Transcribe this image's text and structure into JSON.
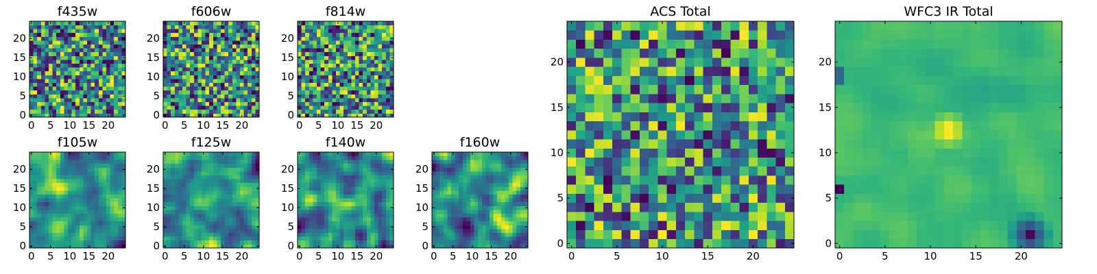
{
  "figure": {
    "panels": [
      {
        "title": "f435w",
        "xticks": [
          "0",
          "5",
          "10",
          "15",
          "20"
        ],
        "yticks": [
          "0",
          "5",
          "10",
          "15",
          "20"
        ]
      },
      {
        "title": "f606w",
        "xticks": [
          "0",
          "5",
          "10",
          "15",
          "20"
        ],
        "yticks": [
          "0",
          "5",
          "10",
          "15",
          "20"
        ]
      },
      {
        "title": "f814w",
        "xticks": [
          "0",
          "5",
          "10",
          "15",
          "20"
        ],
        "yticks": [
          "0",
          "5",
          "10",
          "15",
          "20"
        ]
      },
      {
        "title": "f105w",
        "xticks": [
          "0",
          "5",
          "10",
          "15",
          "20"
        ],
        "yticks": [
          "0",
          "5",
          "10",
          "15",
          "20"
        ]
      },
      {
        "title": "f125w",
        "xticks": [
          "0",
          "5",
          "10",
          "15",
          "20"
        ],
        "yticks": [
          "0",
          "5",
          "10",
          "15",
          "20"
        ]
      },
      {
        "title": "f140w",
        "xticks": [
          "0",
          "5",
          "10",
          "15",
          "20"
        ],
        "yticks": [
          "0",
          "5",
          "10",
          "15",
          "20"
        ]
      },
      {
        "title": "f160w",
        "xticks": [
          "0",
          "5",
          "10",
          "15",
          "20"
        ],
        "yticks": [
          "0",
          "5",
          "10",
          "15",
          "20"
        ]
      },
      {
        "title": "ACS Total",
        "xticks": [
          "0",
          "5",
          "10",
          "15",
          "20"
        ],
        "yticks": [
          "0",
          "5",
          "10",
          "15",
          "20"
        ]
      },
      {
        "title": "WFC3 IR Total",
        "xticks": [
          "0",
          "5",
          "10",
          "15",
          "20"
        ],
        "yticks": [
          "0",
          "5",
          "10",
          "15",
          "20"
        ]
      }
    ]
  },
  "chart_data": [
    {
      "type": "heatmap",
      "title": "f435w",
      "grid_size": 25,
      "colormap": "viridis",
      "xlim": [
        -0.5,
        24.5
      ],
      "ylim": [
        -0.5,
        24.5
      ],
      "origin": "lower",
      "texture": "noise",
      "seed": 11
    },
    {
      "type": "heatmap",
      "title": "f606w",
      "grid_size": 25,
      "colormap": "viridis",
      "xlim": [
        -0.5,
        24.5
      ],
      "ylim": [
        -0.5,
        24.5
      ],
      "origin": "lower",
      "texture": "noise",
      "seed": 23
    },
    {
      "type": "heatmap",
      "title": "f814w",
      "grid_size": 25,
      "colormap": "viridis",
      "xlim": [
        -0.5,
        24.5
      ],
      "ylim": [
        -0.5,
        24.5
      ],
      "origin": "lower",
      "texture": "noise",
      "seed": 37
    },
    {
      "type": "heatmap",
      "title": "f105w",
      "grid_size": 25,
      "colormap": "viridis",
      "xlim": [
        -0.5,
        24.5
      ],
      "ylim": [
        -0.5,
        24.5
      ],
      "origin": "lower",
      "texture": "smooth",
      "seed": 41
    },
    {
      "type": "heatmap",
      "title": "f125w",
      "grid_size": 25,
      "colormap": "viridis",
      "xlim": [
        -0.5,
        24.5
      ],
      "ylim": [
        -0.5,
        24.5
      ],
      "origin": "lower",
      "texture": "smooth",
      "seed": 53
    },
    {
      "type": "heatmap",
      "title": "f140w",
      "grid_size": 25,
      "colormap": "viridis",
      "xlim": [
        -0.5,
        24.5
      ],
      "ylim": [
        -0.5,
        24.5
      ],
      "origin": "lower",
      "texture": "smooth",
      "seed": 67
    },
    {
      "type": "heatmap",
      "title": "f160w",
      "grid_size": 25,
      "colormap": "viridis",
      "xlim": [
        -0.5,
        24.5
      ],
      "ylim": [
        -0.5,
        24.5
      ],
      "origin": "lower",
      "texture": "smooth",
      "seed": 79
    },
    {
      "type": "heatmap",
      "title": "ACS Total",
      "grid_size": 25,
      "colormap": "viridis",
      "xlim": [
        -0.5,
        24.5
      ],
      "ylim": [
        -0.5,
        24.5
      ],
      "origin": "lower",
      "texture": "noise",
      "seed": 83
    },
    {
      "type": "heatmap",
      "title": "WFC3 IR Total",
      "grid_size": 25,
      "colormap": "viridis",
      "xlim": [
        -0.5,
        24.5
      ],
      "ylim": [
        -0.5,
        24.5
      ],
      "origin": "lower",
      "texture": "smooth",
      "seed": 97,
      "features": [
        {
          "kind": "bright-blob",
          "center": [
            12,
            12.5
          ],
          "radius": 2.2
        },
        {
          "kind": "dark-patch",
          "center": [
            21,
            1
          ],
          "radius": 2.5
        },
        {
          "kind": "dark-patch",
          "center": [
            0,
            18.5
          ],
          "radius": 1.0
        },
        {
          "kind": "dark-patch",
          "center": [
            0,
            6
          ],
          "radius": 0.8
        }
      ]
    }
  ]
}
